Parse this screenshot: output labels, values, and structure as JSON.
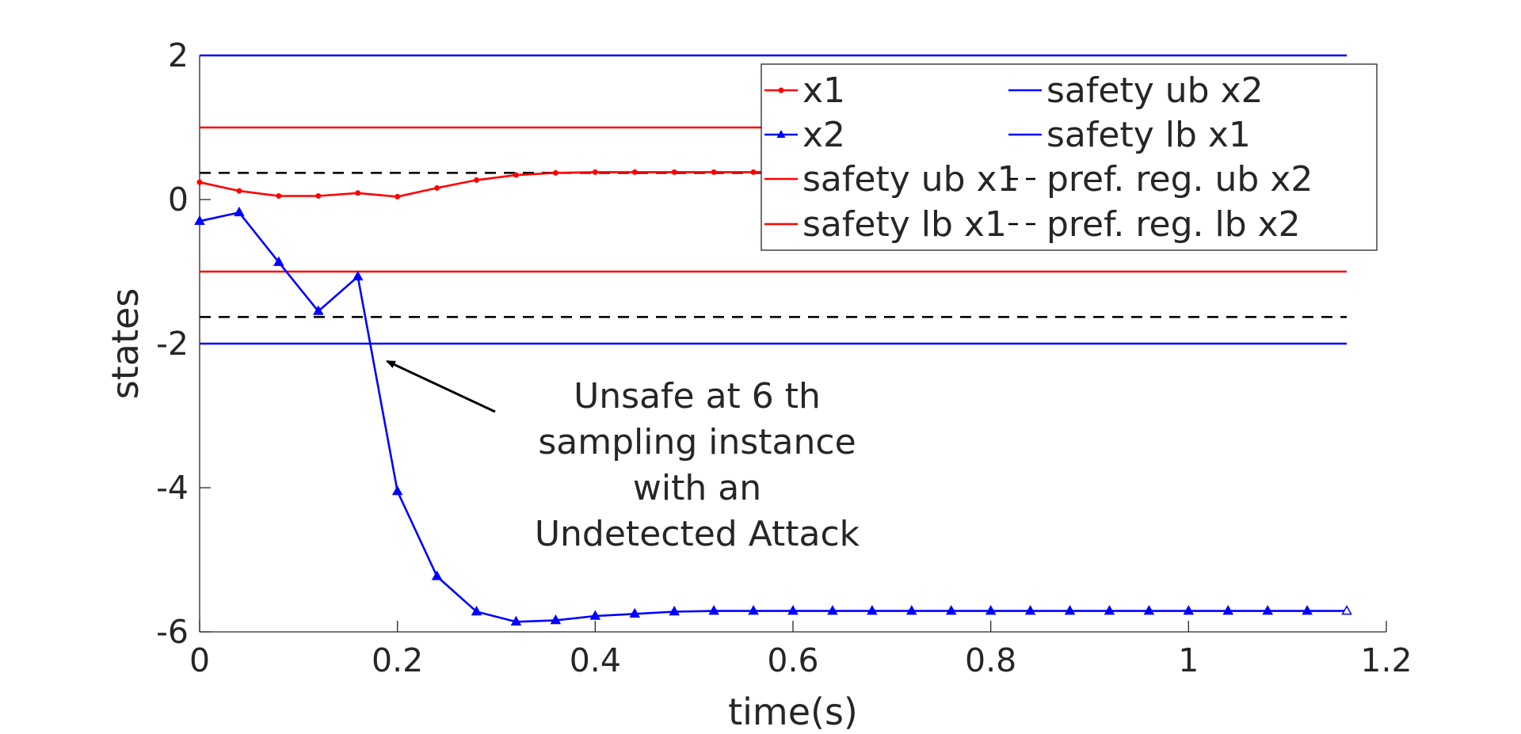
{
  "chart_data": {
    "type": "line",
    "title": "",
    "xlabel": "time(s)",
    "ylabel": "states",
    "xlim": [
      0,
      1.2
    ],
    "ylim": [
      -6,
      2
    ],
    "xticks": [
      0,
      0.2,
      0.4,
      0.6,
      0.8,
      1,
      1.2
    ],
    "yticks": [
      -6,
      -4,
      -2,
      0,
      2
    ],
    "x_tick_labels": [
      "0",
      "0.2",
      "0.4",
      "0.6",
      "0.8",
      "1",
      "1.2"
    ],
    "y_tick_labels": [
      "-6",
      "-4",
      "-2",
      "0",
      "2"
    ],
    "grid": false,
    "legend_position": "top-right",
    "series": [
      {
        "name": "x1",
        "color": "#ff0000",
        "line_style": "solid",
        "marker": "dot",
        "x": [
          0,
          0.04,
          0.08,
          0.12,
          0.16,
          0.2,
          0.24,
          0.28,
          0.32,
          0.36,
          0.4,
          0.44,
          0.48,
          0.52,
          0.56,
          0.6,
          0.64,
          0.68,
          0.72,
          0.76,
          0.8,
          0.84,
          0.88,
          0.92,
          0.96,
          1.0,
          1.04,
          1.08,
          1.12,
          1.16
        ],
        "y": [
          0.24,
          0.12,
          0.05,
          0.05,
          0.09,
          0.04,
          0.16,
          0.27,
          0.34,
          0.37,
          0.38,
          0.38,
          0.38,
          0.38,
          0.38,
          0.38,
          0.38,
          0.38,
          0.38,
          0.38,
          0.38,
          0.38,
          0.38,
          0.38,
          0.38,
          0.38,
          0.38,
          0.38,
          0.38,
          0.38
        ]
      },
      {
        "name": "x2",
        "color": "#0000ff",
        "line_style": "solid",
        "marker": "triangle",
        "x": [
          0,
          0.04,
          0.08,
          0.12,
          0.16,
          0.2,
          0.24,
          0.28,
          0.32,
          0.36,
          0.4,
          0.44,
          0.48,
          0.52,
          0.56,
          0.6,
          0.64,
          0.68,
          0.72,
          0.76,
          0.8,
          0.84,
          0.88,
          0.92,
          0.96,
          1.0,
          1.04,
          1.08,
          1.12,
          1.16
        ],
        "y": [
          -0.3,
          -0.18,
          -0.87,
          -1.55,
          -1.07,
          -4.05,
          -5.23,
          -5.72,
          -5.86,
          -5.84,
          -5.78,
          -5.75,
          -5.72,
          -5.71,
          -5.71,
          -5.71,
          -5.71,
          -5.71,
          -5.71,
          -5.71,
          -5.71,
          -5.71,
          -5.71,
          -5.71,
          -5.71,
          -5.71,
          -5.71,
          -5.71,
          -5.71,
          -5.71
        ]
      },
      {
        "name": "safety ub x1",
        "color": "#ff0000",
        "line_style": "solid",
        "x": [
          0,
          1.16
        ],
        "y": [
          1,
          1
        ]
      },
      {
        "name": "safety lb x1",
        "color": "#ff0000",
        "line_style": "solid",
        "x": [
          0,
          1.16
        ],
        "y": [
          -1,
          -1
        ]
      },
      {
        "name": "safety ub x2",
        "color": "#0000ff",
        "line_style": "solid",
        "x": [
          0,
          1.16
        ],
        "y": [
          2,
          2
        ]
      },
      {
        "name": "safety lb x1",
        "color": "#0000ff",
        "line_style": "solid",
        "x": [
          0,
          1.16
        ],
        "y": [
          -2,
          -2
        ]
      },
      {
        "name": "pref. reg. ub x2",
        "color": "#000000",
        "line_style": "dashed",
        "x": [
          0,
          1.16
        ],
        "y": [
          0.37,
          0.37
        ]
      },
      {
        "name": "pref. reg. lb x2",
        "color": "#000000",
        "line_style": "dashed",
        "x": [
          0,
          1.16
        ],
        "y": [
          -1.63,
          -1.63
        ]
      }
    ],
    "annotation": {
      "lines": [
        "Unsafe at 6 th",
        "sampling instance",
        "with an",
        "Undetected Attack"
      ],
      "arrow_target": {
        "x": 0.18,
        "y": -2.2
      },
      "text_anchor": {
        "x": 0.5,
        "y": -2.9
      }
    }
  }
}
